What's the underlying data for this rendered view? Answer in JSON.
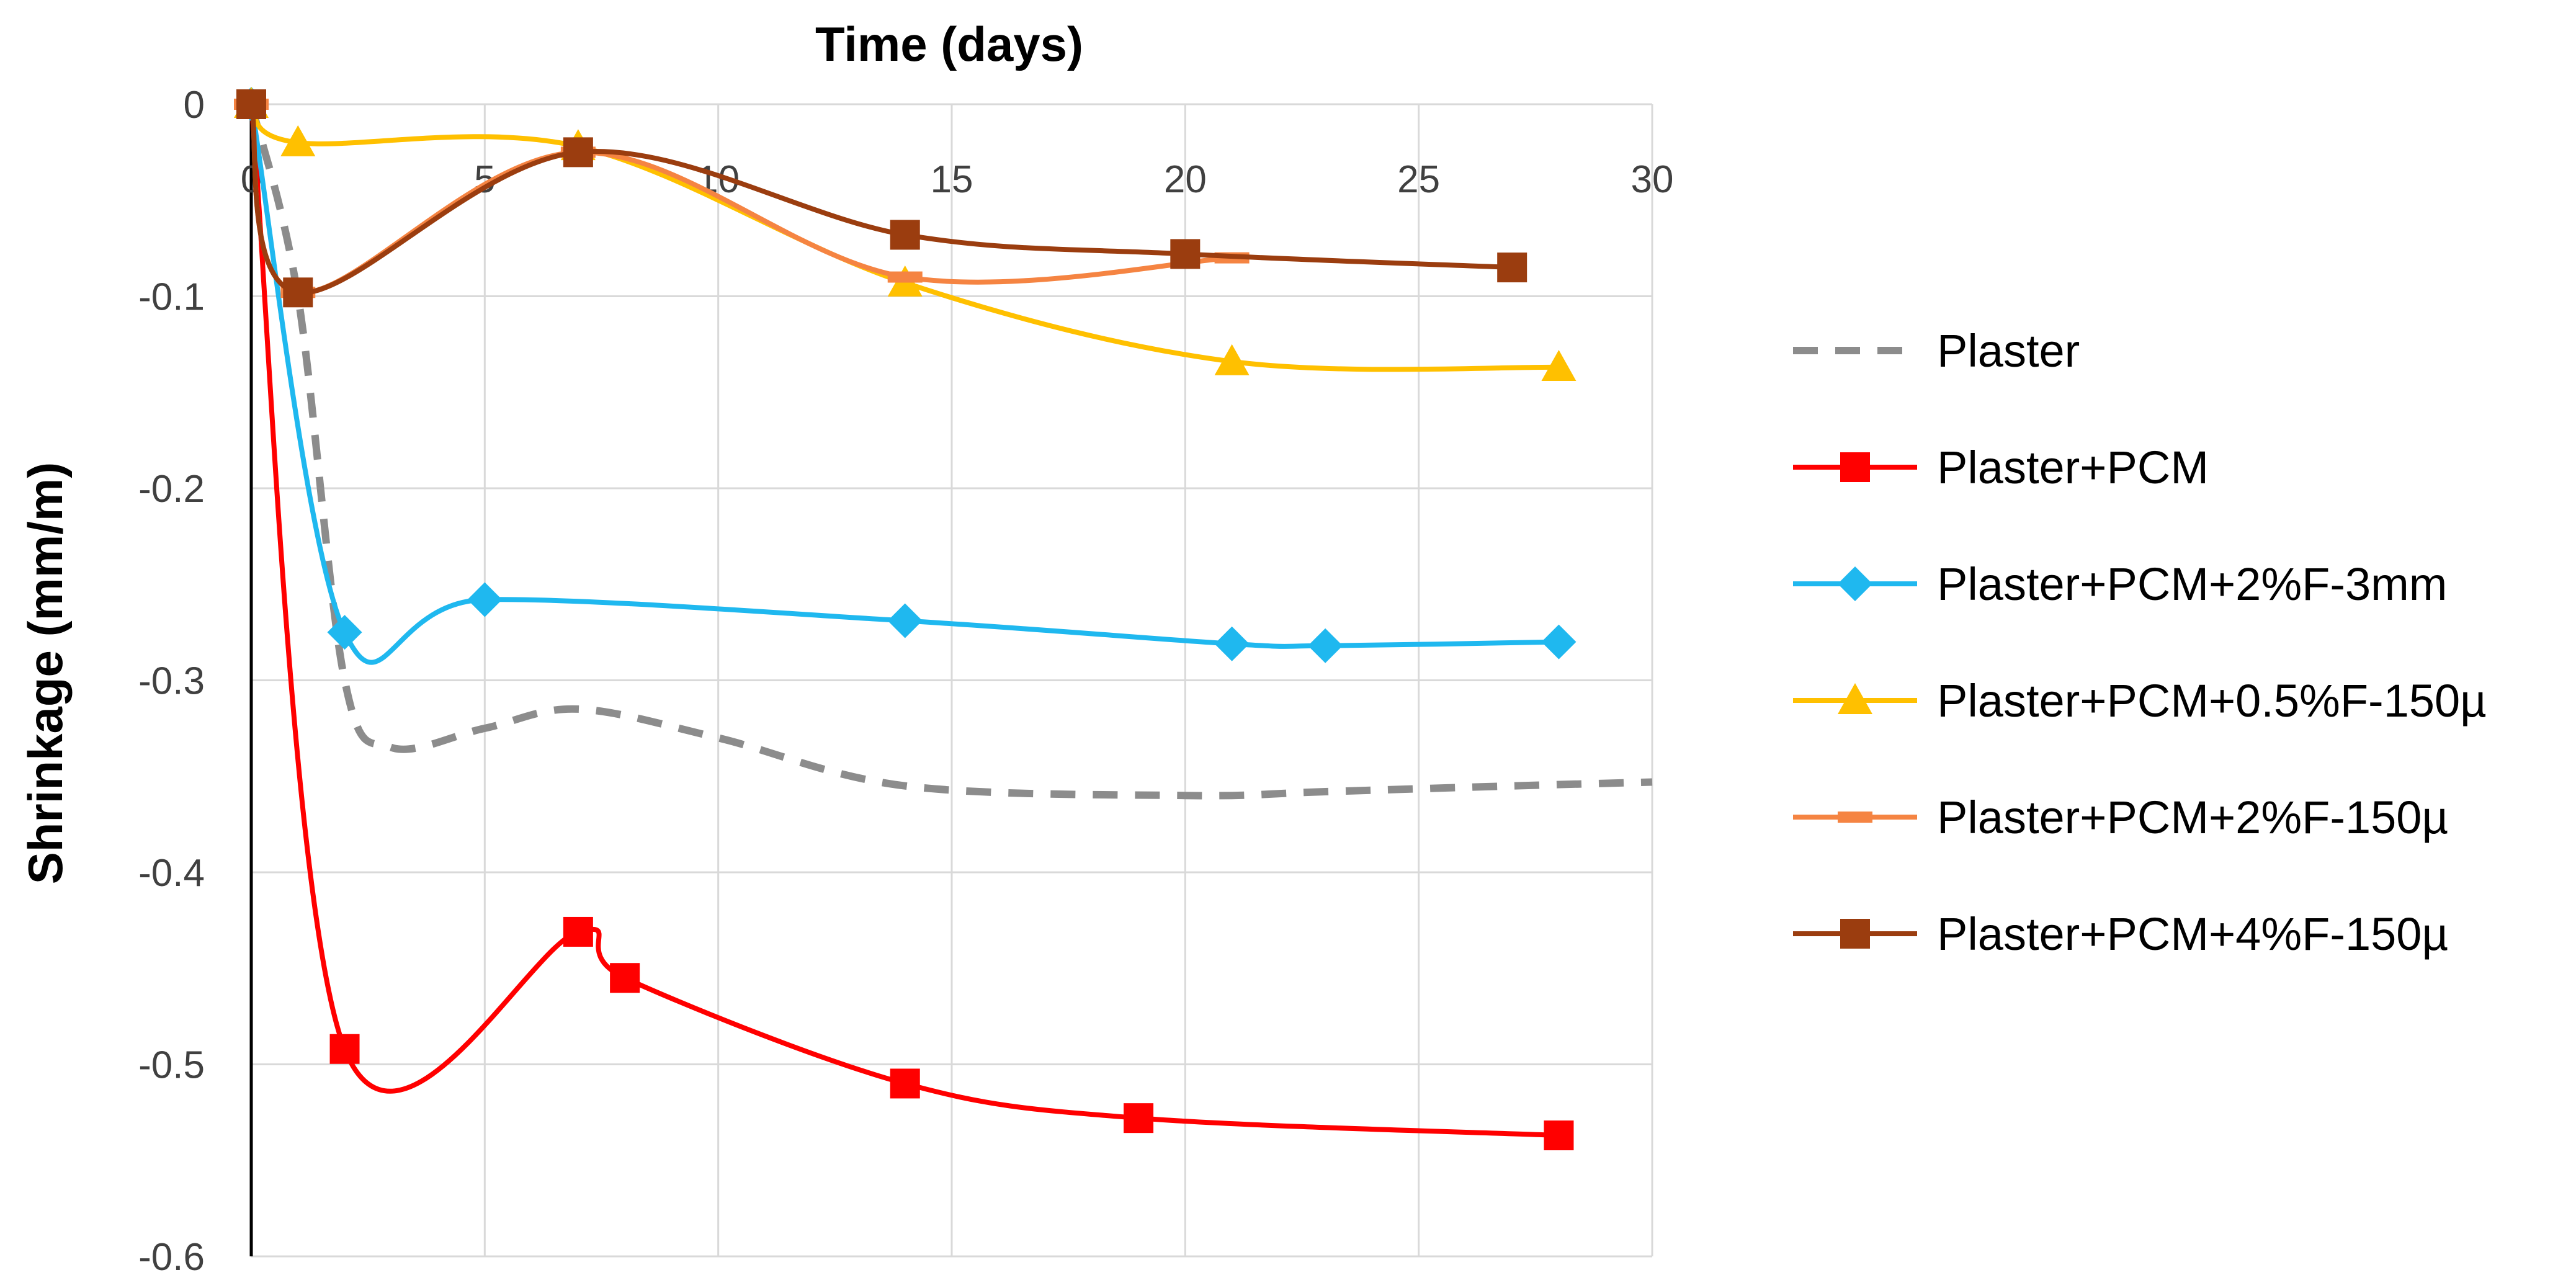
{
  "chart_data": {
    "type": "line",
    "title": "",
    "xlabel": "Time (days)",
    "ylabel": "Shrinkage (mm/m)",
    "xlim": [
      0,
      30
    ],
    "ylim": [
      -0.6,
      0
    ],
    "xticks": [
      0,
      5,
      10,
      15,
      20,
      25,
      30
    ],
    "yticks": [
      0,
      -0.1,
      -0.2,
      -0.3,
      -0.4,
      -0.5,
      -0.6
    ],
    "grid": true,
    "legend_position": "right",
    "series": [
      {
        "name": "Plaster",
        "color": "#8c8c8c",
        "style": "dashed",
        "marker": "none",
        "x": [
          0,
          1,
          2,
          3,
          5,
          7,
          10,
          14,
          20,
          23,
          27,
          30
        ],
        "y": [
          0,
          -0.1,
          -0.3,
          -0.335,
          -0.325,
          -0.315,
          -0.33,
          -0.355,
          -0.36,
          -0.358,
          -0.355,
          -0.353
        ]
      },
      {
        "name": "Plaster+PCM",
        "color": "#ff0000",
        "style": "solid",
        "marker": "square",
        "x": [
          0,
          2,
          7,
          8,
          14,
          19,
          28
        ],
        "y": [
          0,
          -0.492,
          -0.431,
          -0.455,
          -0.51,
          -0.528,
          -0.537
        ]
      },
      {
        "name": "Plaster+PCM+2%F-3mm",
        "color": "#1fb8ef",
        "style": "solid",
        "marker": "diamond",
        "x": [
          0,
          2,
          5,
          14,
          21,
          23,
          28
        ],
        "y": [
          0,
          -0.275,
          -0.258,
          -0.269,
          -0.281,
          -0.282,
          -0.28
        ]
      },
      {
        "name": "Plaster+PCM+0.5%F-150µ",
        "color": "#ffc000",
        "style": "solid",
        "marker": "triangle",
        "x": [
          0,
          1,
          7,
          14,
          21,
          28
        ],
        "y": [
          0,
          -0.02,
          -0.022,
          -0.093,
          -0.134,
          -0.137
        ]
      },
      {
        "name": "Plaster+PCM+2%F-150µ",
        "color": "#f58442",
        "style": "solid",
        "marker": "dash",
        "x": [
          0,
          1,
          7,
          14,
          21
        ],
        "y": [
          0,
          -0.098,
          -0.025,
          -0.09,
          -0.08
        ]
      },
      {
        "name": "Plaster+PCM+4%F-150µ",
        "color": "#9b3d0f",
        "style": "solid",
        "marker": "square",
        "x": [
          0,
          1,
          7,
          14,
          20,
          27
        ],
        "y": [
          0,
          -0.098,
          -0.025,
          -0.068,
          -0.078,
          -0.085
        ]
      }
    ]
  }
}
